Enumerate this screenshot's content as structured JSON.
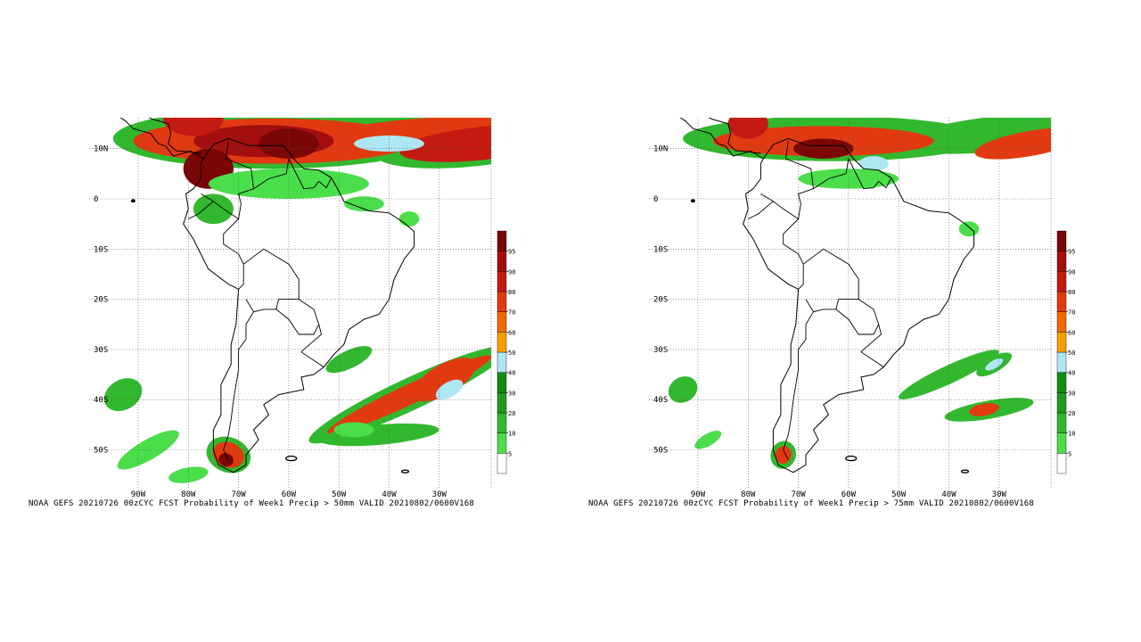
{
  "panels": [
    {
      "caption": "NOAA GEFS 20210726 00zCYC FCST Probability of Week1 Precip > 50mm  VALID 20210802/0600V168",
      "threshold_mm": 50
    },
    {
      "caption": "NOAA GEFS 20210726 00zCYC FCST Probability of Week1 Precip > 75mm  VALID 20210802/0600V168",
      "threshold_mm": 75
    }
  ],
  "lat_labels": [
    "10N",
    "0",
    "10S",
    "20S",
    "30S",
    "40S",
    "50S"
  ],
  "lon_labels": [
    "90W",
    "80W",
    "70W",
    "60W",
    "50W",
    "40W",
    "30W"
  ],
  "colorbar": {
    "labels": [
      "5",
      "10",
      "20",
      "30",
      "40",
      "50",
      "60",
      "70",
      "80",
      "90",
      "95"
    ],
    "colors": [
      "#ffffff",
      "#4ade4a",
      "#32b82e",
      "#1f9a1c",
      "#138a12",
      "#aee6f4",
      "#f5a000",
      "#f06a00",
      "#e23a10",
      "#c41a12",
      "#a30e0e",
      "#7a0606"
    ]
  }
}
